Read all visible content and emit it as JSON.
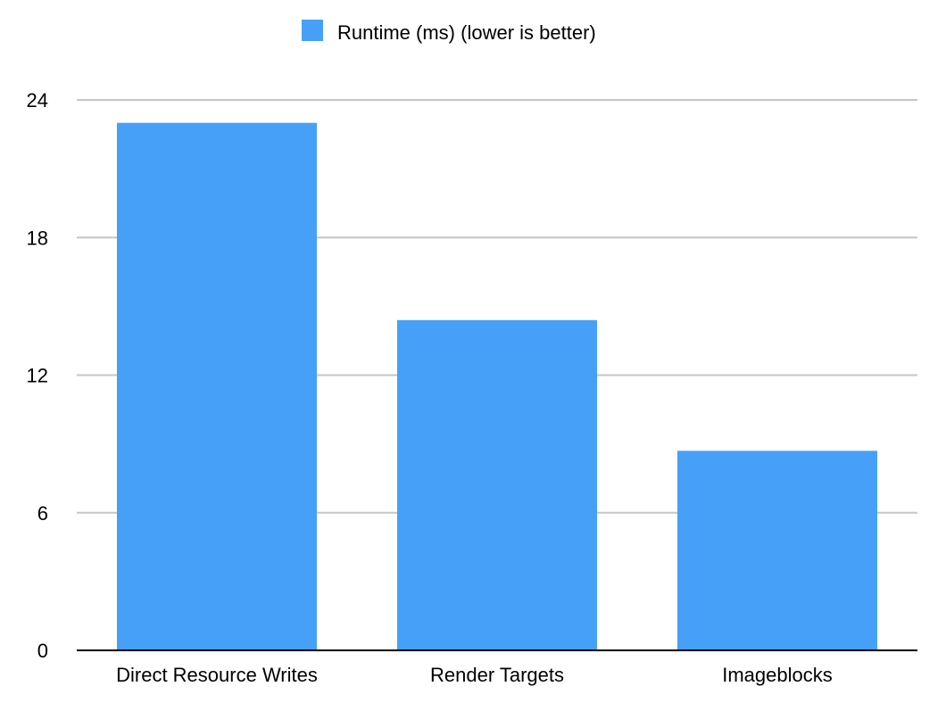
{
  "chart_data": {
    "type": "bar",
    "title": "",
    "xlabel": "",
    "ylabel": "",
    "categories": [
      "Direct Resource Writes",
      "Render Targets",
      "Imageblocks"
    ],
    "series": [
      {
        "name": "Runtime (ms) (lower is better)",
        "values": [
          23,
          14.4,
          8.7
        ],
        "color": "#47a0f8"
      }
    ],
    "ylim": [
      0,
      24
    ],
    "yticks": [
      0,
      6,
      12,
      18,
      24
    ],
    "ytick_labels": [
      "0",
      "6",
      "12",
      "18",
      "24"
    ],
    "grid": true,
    "legend_position": "top-center"
  }
}
